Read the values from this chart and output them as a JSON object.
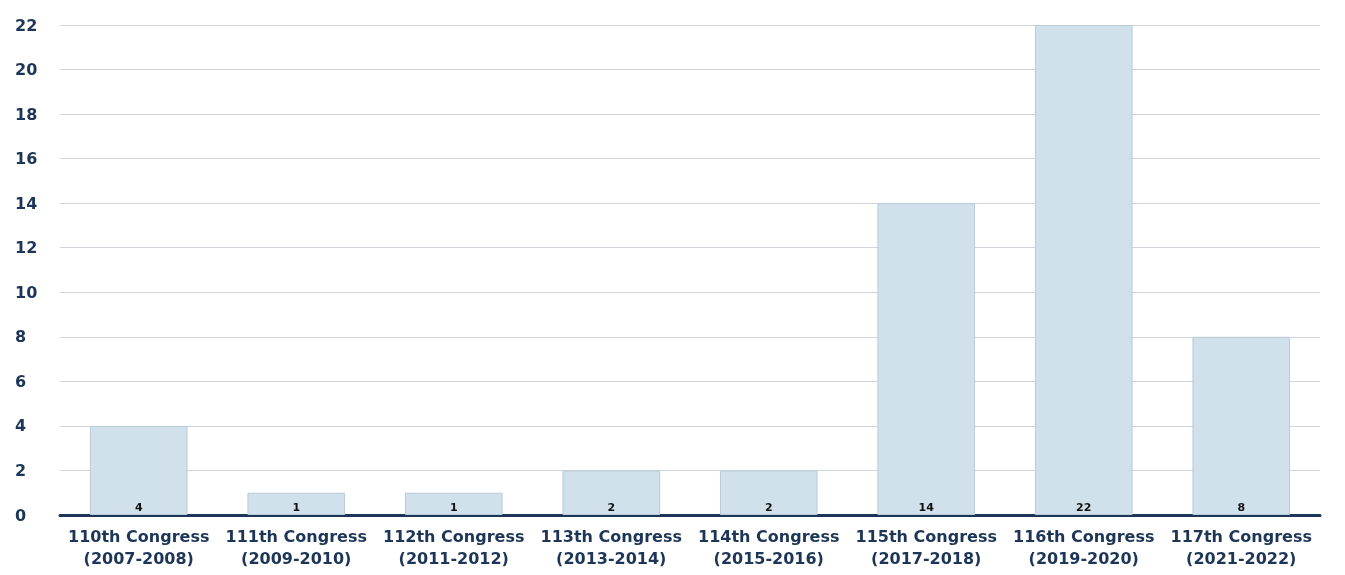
{
  "chart_data": {
    "type": "bar",
    "categories": [
      "110th Congress\n(2007-2008)",
      "111th Congress\n(2009-2010)",
      "112th Congress\n(2011-2012)",
      "113th Congress\n(2013-2014)",
      "114th Congress\n(2015-2016)",
      "115th Congress\n(2017-2018)",
      "116th Congress\n(2019-2020)",
      "117th Congress\n(2021-2022)"
    ],
    "values": [
      4,
      1,
      1,
      2,
      2,
      14,
      22,
      8
    ],
    "color": "#d1e1eb",
    "ylim": [
      0,
      22
    ],
    "yticks": [
      0,
      2,
      4,
      6,
      8,
      10,
      12,
      14,
      16,
      18,
      20,
      22
    ],
    "grid": "y",
    "data_labels": true
  }
}
